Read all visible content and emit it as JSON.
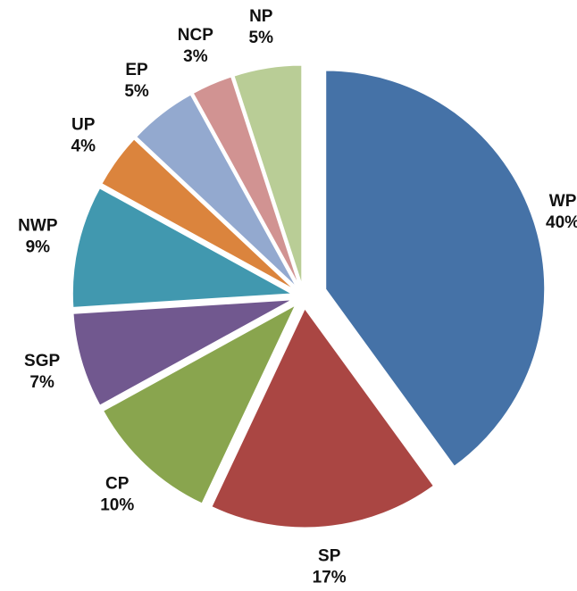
{
  "chart_data": {
    "type": "pie",
    "categories": [
      "WP",
      "SP",
      "CP",
      "SGP",
      "NWP",
      "UP",
      "EP",
      "NCP",
      "NP"
    ],
    "values": [
      40,
      17,
      10,
      7,
      9,
      4,
      5,
      3,
      5
    ],
    "value_labels": [
      "40%",
      "17%",
      "10%",
      "7%",
      "9%",
      "4%",
      "5%",
      "3%",
      "5%"
    ],
    "colors": [
      "#4572a7",
      "#aa4643",
      "#89a54e",
      "#71588f",
      "#4198af",
      "#db843d",
      "#93a9cf",
      "#d19392",
      "#b9cd96"
    ]
  }
}
